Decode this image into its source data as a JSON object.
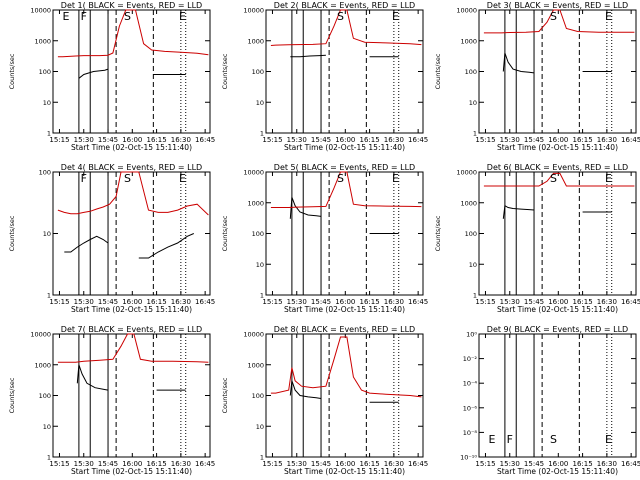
{
  "page": {
    "background": "#ffffff"
  },
  "colors": {
    "events": "#000000",
    "lld": "#cc0000",
    "axis": "#000000"
  },
  "chart_data": [
    {
      "type": "line",
      "title": "Det 1(  BLACK = Events, RED = LLD",
      "xlabel": "Start Time (02-Oct-15 15:11:40)",
      "ylabel": "Counts/sec",
      "scale": "log",
      "ylim": [
        1,
        10000
      ],
      "y_ticks": [
        "1",
        "10",
        "100",
        "1000",
        "10000"
      ],
      "x_ticks": [
        "15:15",
        "15:30",
        "15:45",
        "16:00",
        "16:15",
        "16:30",
        "16:45"
      ],
      "markers": [
        "E",
        "F",
        "S",
        "E"
      ],
      "series": [
        {
          "name": "Events",
          "x": [
            "15:14",
            "15:17",
            "15:25",
            "15:27",
            "15:30",
            "15:36",
            "15:43",
            "15:45",
            "15:50",
            "16:03",
            "16:10",
            "16:13",
            "16:15",
            "16:30",
            "16:33",
            "16:36"
          ],
          "values": [
            null,
            null,
            null,
            60,
            80,
            100,
            110,
            120,
            null,
            null,
            null,
            80,
            80,
            80,
            80,
            null
          ]
        },
        {
          "name": "LLD",
          "x": [
            "15:14",
            "15:17",
            "15:25",
            "15:30",
            "15:36",
            "15:40",
            "15:45",
            "15:48",
            "15:52",
            "15:56",
            "16:02",
            "16:07",
            "16:12",
            "16:20",
            "16:30",
            "16:40",
            "16:47"
          ],
          "values": [
            300,
            300,
            320,
            330,
            330,
            330,
            340,
            400,
            3000,
            10000,
            10000,
            800,
            500,
            450,
            420,
            390,
            350
          ]
        }
      ]
    },
    {
      "type": "line",
      "title": "Det 2(  BLACK = Events, RED = LLD",
      "xlabel": "Start Time (02-Oct-15 15:11:40)",
      "ylabel": "Counts/sec",
      "scale": "log",
      "ylim": [
        1,
        10000
      ],
      "y_ticks": [
        "1",
        "10",
        "100",
        "1000",
        "10000"
      ],
      "x_ticks": [
        "15:15",
        "15:30",
        "15:45",
        "16:00",
        "16:15",
        "16:30",
        "16:45"
      ],
      "markers": [
        "",
        "",
        "S",
        "E"
      ],
      "series": [
        {
          "name": "Events",
          "x": [
            "15:14",
            "15:17",
            "15:26",
            "15:29",
            "15:32",
            "15:38",
            "15:44",
            "15:48",
            "16:13",
            "16:15",
            "16:30",
            "16:33"
          ],
          "values": [
            null,
            null,
            300,
            300,
            300,
            320,
            330,
            340,
            null,
            300,
            300,
            300
          ]
        },
        {
          "name": "LLD",
          "x": [
            "15:14",
            "15:17",
            "15:25",
            "15:30",
            "15:40",
            "15:48",
            "15:53",
            "15:57",
            "16:01",
            "16:05",
            "16:12",
            "16:25",
            "16:40",
            "16:47"
          ],
          "values": [
            700,
            720,
            740,
            750,
            760,
            800,
            3000,
            10000,
            10000,
            1200,
            900,
            850,
            800,
            750
          ]
        }
      ]
    },
    {
      "type": "line",
      "title": "Det 3(  BLACK = Events, RED = LLD",
      "xlabel": "Start Time (02-Oct-15 15:11:40)",
      "ylabel": "Counts/sec",
      "scale": "log",
      "ylim": [
        1,
        10000
      ],
      "y_ticks": [
        "1",
        "10",
        "100",
        "1000",
        "10000"
      ],
      "x_ticks": [
        "15:15",
        "15:30",
        "15:45",
        "16:00",
        "16:15",
        "16:30",
        "16:45"
      ],
      "markers": [
        "",
        "",
        "S",
        "E"
      ],
      "series": [
        {
          "name": "Events",
          "x": [
            "15:14",
            "15:17",
            "15:25",
            "15:26",
            "15:27",
            "15:29",
            "15:32",
            "15:37",
            "15:42",
            "15:45",
            "15:50",
            "16:13",
            "16:15",
            "16:30",
            "16:33"
          ],
          "values": [
            null,
            null,
            null,
            100,
            400,
            200,
            120,
            100,
            95,
            90,
            null,
            null,
            100,
            100,
            100
          ]
        },
        {
          "name": "LLD",
          "x": [
            "15:14",
            "15:17",
            "15:25",
            "15:30",
            "15:40",
            "15:48",
            "15:53",
            "15:57",
            "16:01",
            "16:05",
            "16:12",
            "16:25",
            "16:40",
            "16:47"
          ],
          "values": [
            1800,
            1800,
            1800,
            1850,
            1900,
            2000,
            4000,
            10000,
            10000,
            2500,
            2000,
            1900,
            1900,
            1900
          ]
        }
      ]
    },
    {
      "type": "line",
      "title": "Det 4(  BLACK = Events, RED = LLD",
      "xlabel": "Start Time (02-Oct-15 15:11:40)",
      "ylabel": "Counts/sec",
      "scale": "log",
      "ylim": [
        1,
        100
      ],
      "y_ticks": [
        "1",
        "10",
        "100"
      ],
      "x_ticks": [
        "15:15",
        "15:30",
        "15:45",
        "16:00",
        "16:15",
        "16:30",
        "16:45"
      ],
      "markers": [
        "",
        "F",
        "S",
        "E"
      ],
      "series": [
        {
          "name": "Events",
          "x": [
            "15:15",
            "15:18",
            "15:22",
            "15:26",
            "15:30",
            "15:34",
            "15:38",
            "15:42",
            "15:45",
            "15:48",
            "16:00",
            "16:04",
            "16:10",
            "16:16",
            "16:22",
            "16:28",
            "16:34",
            "16:38"
          ],
          "values": [
            null,
            5,
            5,
            6,
            7,
            8,
            9,
            8,
            7,
            null,
            null,
            4,
            4,
            5,
            6,
            7,
            9,
            10
          ]
        },
        {
          "name": "LLD",
          "x": [
            "15:14",
            "15:18",
            "15:22",
            "15:26",
            "15:30",
            "15:34",
            "15:38",
            "15:42",
            "15:46",
            "15:50",
            "15:53",
            "15:56",
            "16:00",
            "16:04",
            "16:10",
            "16:16",
            "16:22",
            "16:28",
            "16:34",
            "16:40",
            "16:47"
          ],
          "values": [
            24,
            22,
            21,
            21,
            22,
            23,
            25,
            27,
            30,
            40,
            100,
            100,
            100,
            100,
            24,
            22,
            22,
            24,
            28,
            30,
            20
          ]
        }
      ]
    },
    {
      "type": "line",
      "title": "Det 5(  BLACK = Events, RED = LLD",
      "xlabel": "Start Time (02-Oct-15 15:11:40)",
      "ylabel": "Counts/sec",
      "scale": "log",
      "ylim": [
        1,
        10000
      ],
      "y_ticks": [
        "1",
        "10",
        "100",
        "1000",
        "10000"
      ],
      "x_ticks": [
        "15:15",
        "15:30",
        "15:45",
        "16:00",
        "16:15",
        "16:30",
        "16:45"
      ],
      "markers": [
        "",
        "",
        "S",
        "E"
      ],
      "series": [
        {
          "name": "Events",
          "x": [
            "15:14",
            "15:17",
            "15:25",
            "15:26",
            "15:27",
            "15:29",
            "15:32",
            "15:37",
            "15:42",
            "15:45",
            "15:50",
            "16:13",
            "16:15",
            "16:30",
            "16:33"
          ],
          "values": [
            null,
            null,
            null,
            300,
            1500,
            800,
            500,
            400,
            380,
            360,
            null,
            null,
            100,
            100,
            100
          ]
        },
        {
          "name": "LLD",
          "x": [
            "15:14",
            "15:17",
            "15:25",
            "15:30",
            "15:40",
            "15:48",
            "15:53",
            "15:57",
            "16:01",
            "16:05",
            "16:12",
            "16:25",
            "16:40",
            "16:47"
          ],
          "values": [
            700,
            700,
            700,
            720,
            740,
            760,
            3000,
            10000,
            10000,
            900,
            800,
            780,
            760,
            750
          ]
        }
      ]
    },
    {
      "type": "line",
      "title": "Det 6(  BLACK = Events, RED = LLD",
      "xlabel": "Start Time (02-Oct-15 15:11:40)",
      "ylabel": "Counts/sec",
      "scale": "log",
      "ylim": [
        1,
        10000
      ],
      "y_ticks": [
        "1",
        "10",
        "100",
        "1000",
        "10000"
      ],
      "x_ticks": [
        "15:15",
        "15:30",
        "15:45",
        "16:00",
        "16:15",
        "16:30",
        "16:45"
      ],
      "markers": [
        "",
        "",
        "S",
        "E"
      ],
      "series": [
        {
          "name": "Events",
          "x": [
            "15:14",
            "15:17",
            "15:25",
            "15:26",
            "15:27",
            "15:29",
            "15:32",
            "15:37",
            "15:42",
            "15:45",
            "15:50",
            "16:13",
            "16:15",
            "16:30",
            "16:33"
          ],
          "values": [
            null,
            null,
            null,
            300,
            800,
            700,
            650,
            620,
            600,
            580,
            null,
            null,
            500,
            500,
            500
          ]
        },
        {
          "name": "LLD",
          "x": [
            "15:14",
            "15:17",
            "15:25",
            "15:30",
            "15:40",
            "15:48",
            "15:53",
            "15:57",
            "16:01",
            "16:05",
            "16:12",
            "16:25",
            "16:40",
            "16:47"
          ],
          "values": [
            3500,
            3500,
            3500,
            3500,
            3500,
            3500,
            5000,
            9000,
            9000,
            3500,
            3500,
            3500,
            3500,
            3500
          ]
        }
      ]
    },
    {
      "type": "line",
      "title": "Det 7(  BLACK = Events, RED = LLD",
      "xlabel": "Start Time (02-Oct-15 15:11:40)",
      "ylabel": "Counts/sec",
      "scale": "log",
      "ylim": [
        1,
        10000
      ],
      "y_ticks": [
        "1",
        "10",
        "100",
        "1000",
        "10000"
      ],
      "x_ticks": [
        "15:15",
        "15:30",
        "15:45",
        "16:00",
        "16:15",
        "16:30",
        "16:45"
      ],
      "markers": [
        "",
        "",
        "",
        ""
      ],
      "series": [
        {
          "name": "Events",
          "x": [
            "15:14",
            "15:17",
            "15:25",
            "15:26",
            "15:27",
            "15:29",
            "15:32",
            "15:37",
            "15:42",
            "15:45",
            "15:50",
            "16:13",
            "16:15",
            "16:30",
            "16:33"
          ],
          "values": [
            null,
            null,
            null,
            250,
            1000,
            500,
            250,
            180,
            160,
            150,
            null,
            null,
            150,
            150,
            150
          ]
        },
        {
          "name": "LLD",
          "x": [
            "15:14",
            "15:17",
            "15:25",
            "15:30",
            "15:40",
            "15:48",
            "15:53",
            "15:57",
            "16:01",
            "16:05",
            "16:12",
            "16:25",
            "16:40",
            "16:47"
          ],
          "values": [
            1200,
            1200,
            1200,
            1300,
            1400,
            1500,
            4000,
            10000,
            10000,
            1500,
            1300,
            1300,
            1250,
            1200
          ]
        }
      ]
    },
    {
      "type": "line",
      "title": "Det 8(  BLACK = Events, RED = LLD",
      "xlabel": "Start Time (02-Oct-15 15:11:40)",
      "ylabel": "Counts/sec",
      "scale": "log",
      "ylim": [
        1,
        10000
      ],
      "y_ticks": [
        "1",
        "10",
        "100",
        "1000",
        "10000"
      ],
      "x_ticks": [
        "15:15",
        "15:30",
        "15:45",
        "16:00",
        "16:15",
        "16:30",
        "16:45"
      ],
      "markers": [
        "",
        "",
        "",
        ""
      ],
      "series": [
        {
          "name": "Events",
          "x": [
            "15:14",
            "15:17",
            "15:25",
            "15:26",
            "15:27",
            "15:29",
            "15:32",
            "15:37",
            "15:42",
            "15:45",
            "15:50",
            "16:00",
            "16:02",
            "16:13",
            "16:15",
            "16:30",
            "16:33"
          ],
          "values": [
            null,
            null,
            null,
            100,
            300,
            150,
            100,
            90,
            85,
            80,
            null,
            null,
            null,
            null,
            60,
            60,
            60
          ]
        },
        {
          "name": "LLD",
          "x": [
            "15:14",
            "15:17",
            "15:25",
            "15:27",
            "15:29",
            "15:33",
            "15:40",
            "15:48",
            "15:53",
            "15:57",
            "16:01",
            "16:05",
            "16:10",
            "16:15",
            "16:25",
            "16:40",
            "16:47"
          ],
          "values": [
            120,
            120,
            150,
            800,
            300,
            200,
            180,
            200,
            1500,
            8000,
            8000,
            400,
            150,
            120,
            110,
            100,
            90
          ]
        }
      ]
    },
    {
      "type": "line",
      "title": "Det 9(  BLACK = Events, RED = LLD",
      "xlabel": "Start Time (02-Oct-15 15:11:40)",
      "ylabel": "",
      "scale": "log",
      "ylim": [
        1e-10,
        1
      ],
      "y_ticks": [
        "10⁻¹⁰",
        "10⁻⁸",
        "10⁻⁶",
        "10⁻⁴",
        "10⁻²",
        "10⁰"
      ],
      "x_ticks": [
        "15:15",
        "15:30",
        "15:45",
        "16:00",
        "16:15",
        "16:30",
        "16:45"
      ],
      "markers": [
        "E",
        "F",
        "S",
        "E"
      ],
      "series": []
    }
  ]
}
